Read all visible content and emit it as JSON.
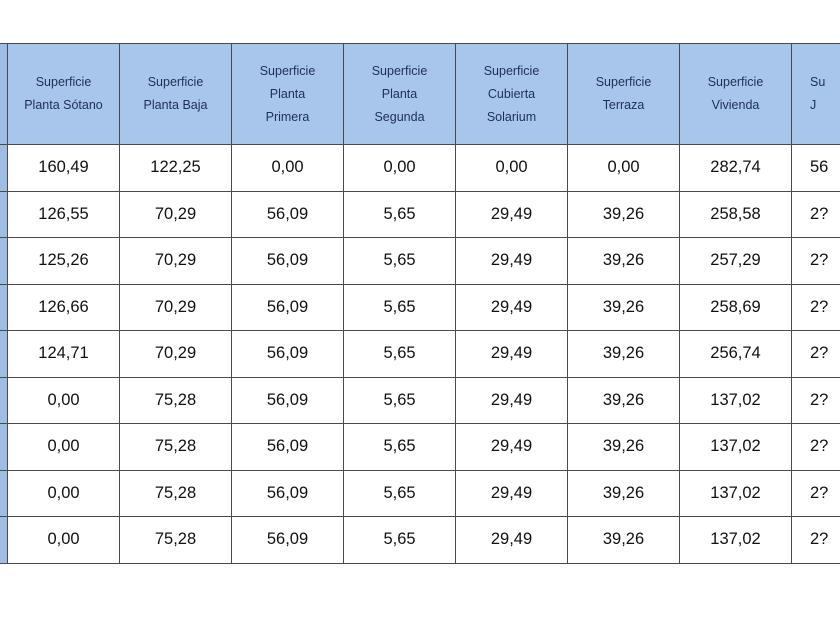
{
  "colors": {
    "header_bg": "#a8c6ec",
    "header_text": "#1f2f52",
    "grid": "#4a4a4a"
  },
  "headers": [
    [
      "Superficie",
      "Planta Sótano"
    ],
    [
      "Superficie",
      "Planta Baja"
    ],
    [
      "Superficie",
      "Planta",
      "Primera"
    ],
    [
      "Superficie",
      "Planta",
      "Segunda"
    ],
    [
      "Superficie",
      "Cubierta",
      "Solarium"
    ],
    [
      "Superficie",
      "Terraza"
    ],
    [
      "Superficie",
      "Vivienda"
    ],
    [
      "Su",
      "J"
    ]
  ],
  "rows": [
    [
      "160,49",
      "122,25",
      "0,00",
      "0,00",
      "0,00",
      "0,00",
      "282,74",
      "56"
    ],
    [
      "126,55",
      "70,29",
      "56,09",
      "5,65",
      "29,49",
      "39,26",
      "258,58",
      "2?"
    ],
    [
      "125,26",
      "70,29",
      "56,09",
      "5,65",
      "29,49",
      "39,26",
      "257,29",
      "2?"
    ],
    [
      "126,66",
      "70,29",
      "56,09",
      "5,65",
      "29,49",
      "39,26",
      "258,69",
      "2?"
    ],
    [
      "124,71",
      "70,29",
      "56,09",
      "5,65",
      "29,49",
      "39,26",
      "256,74",
      "2?"
    ],
    [
      "0,00",
      "75,28",
      "56,09",
      "5,65",
      "29,49",
      "39,26",
      "137,02",
      "2?"
    ],
    [
      "0,00",
      "75,28",
      "56,09",
      "5,65",
      "29,49",
      "39,26",
      "137,02",
      "2?"
    ],
    [
      "0,00",
      "75,28",
      "56,09",
      "5,65",
      "29,49",
      "39,26",
      "137,02",
      "2?"
    ],
    [
      "0,00",
      "75,28",
      "56,09",
      "5,65",
      "29,49",
      "39,26",
      "137,02",
      "2?"
    ]
  ]
}
